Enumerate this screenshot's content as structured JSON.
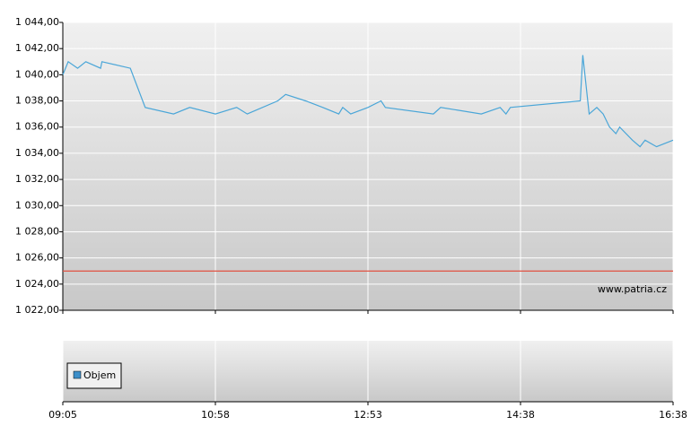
{
  "chart_data": [
    {
      "type": "line",
      "x": [
        "09:05",
        "09:09",
        "09:16",
        "09:22",
        "09:33",
        "09:34",
        "09:55",
        "10:06",
        "10:27",
        "10:39",
        "10:58",
        "11:14",
        "11:22",
        "11:45",
        "11:51",
        "12:06",
        "12:19",
        "12:31",
        "12:34",
        "12:40",
        "12:53",
        "13:02",
        "13:05",
        "13:38",
        "13:43",
        "14:11",
        "14:24",
        "14:28",
        "14:31",
        "15:25",
        "15:27",
        "15:32",
        "15:38",
        "15:43",
        "15:48",
        "15:53",
        "15:56",
        "16:06",
        "16:12",
        "16:16",
        "16:25",
        "16:38"
      ],
      "series": [
        {
          "color": "#4aa6d8",
          "values": [
            1040,
            1041,
            1040.5,
            1041,
            1040.5,
            1041,
            1040.5,
            1037.5,
            1037,
            1037.5,
            1037,
            1037.5,
            1037,
            1038,
            1038.5,
            1038,
            1037.5,
            1037,
            1037.5,
            1037,
            1037.5,
            1038,
            1037.5,
            1037,
            1037.5,
            1037,
            1037.5,
            1037,
            1037.5,
            1038,
            1041.5,
            1037,
            1037.5,
            1037,
            1036,
            1035.5,
            1036,
            1035,
            1034.5,
            1035,
            1034.5,
            1035
          ]
        }
      ],
      "reference_line": 1025,
      "reference_color": "#e05040",
      "ylim": [
        1022,
        1044
      ],
      "yticks": [
        {
          "value": 1022,
          "label": "1 022,00"
        },
        {
          "value": 1024,
          "label": "1 024,00"
        },
        {
          "value": 1026,
          "label": "1 026,00"
        },
        {
          "value": 1028,
          "label": "1 028,00"
        },
        {
          "value": 1030,
          "label": "1 030,00"
        },
        {
          "value": 1032,
          "label": "1 032,00"
        },
        {
          "value": 1034,
          "label": "1 034,00"
        },
        {
          "value": 1036,
          "label": "1 036,00"
        },
        {
          "value": 1038,
          "label": "1 038,00"
        },
        {
          "value": 1040,
          "label": "1 040,00"
        },
        {
          "value": 1042,
          "label": "1 042,00"
        },
        {
          "value": 1044,
          "label": "1 044,00"
        }
      ],
      "xticks": [
        "09:05",
        "10:58",
        "12:53",
        "14:38",
        "16:38"
      ],
      "grid": true,
      "watermark": "www.patria.cz"
    },
    {
      "type": "bar",
      "series": [
        {
          "name": "Objem",
          "color": "#3d8fc9",
          "values": []
        }
      ],
      "legend": "left"
    }
  ]
}
